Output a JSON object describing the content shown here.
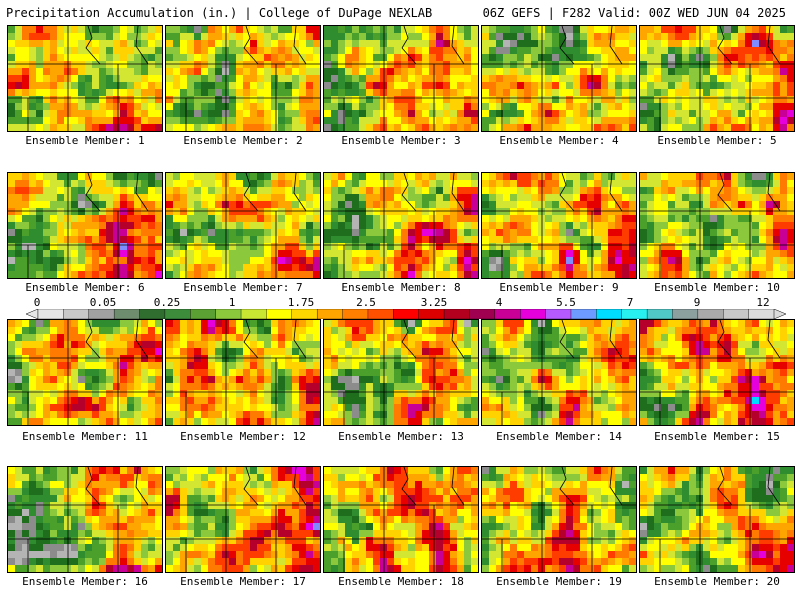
{
  "header": {
    "title": "Precipitation Accumulation (in.) | College of DuPage NEXLAB",
    "run_info": "06Z GEFS | F282 Valid: 00Z WED JUN 04 2025"
  },
  "legend": {
    "labels": [
      "0",
      "0.05",
      "0.25",
      "1",
      "1.75",
      "2.5",
      "3.25",
      "4",
      "5.5",
      "7",
      "9",
      "12"
    ],
    "colors": [
      "#e6e6e6",
      "#c8c8c8",
      "#a0a0a0",
      "#6e8c6e",
      "#2f6e2f",
      "#3c8c3c",
      "#5aa032",
      "#8cc83c",
      "#c8e632",
      "#ffff00",
      "#ffd700",
      "#ffa500",
      "#ff7f00",
      "#ff5000",
      "#ff0000",
      "#dc0000",
      "#b4001e",
      "#a00050",
      "#c80096",
      "#e600dc",
      "#b45aff",
      "#6e9bff",
      "#00dcff",
      "#28f0f0",
      "#50c8c8",
      "#8ca0a0",
      "#aaaaaa",
      "#c8c8c8",
      "#dcdcdc"
    ]
  },
  "members": [
    {
      "label": "Ensemble Member: 1"
    },
    {
      "label": "Ensemble Member: 2"
    },
    {
      "label": "Ensemble Member: 3"
    },
    {
      "label": "Ensemble Member: 4"
    },
    {
      "label": "Ensemble Member: 5"
    },
    {
      "label": "Ensemble Member: 6"
    },
    {
      "label": "Ensemble Member: 7"
    },
    {
      "label": "Ensemble Member: 8"
    },
    {
      "label": "Ensemble Member: 9"
    },
    {
      "label": "Ensemble Member: 10"
    },
    {
      "label": "Ensemble Member: 11"
    },
    {
      "label": "Ensemble Member: 12"
    },
    {
      "label": "Ensemble Member: 13"
    },
    {
      "label": "Ensemble Member: 14"
    },
    {
      "label": "Ensemble Member: 15"
    },
    {
      "label": "Ensemble Member: 16"
    },
    {
      "label": "Ensemble Member: 17"
    },
    {
      "label": "Ensemble Member: 18"
    },
    {
      "label": "Ensemble Member: 19"
    },
    {
      "label": "Ensemble Member: 20"
    }
  ]
}
